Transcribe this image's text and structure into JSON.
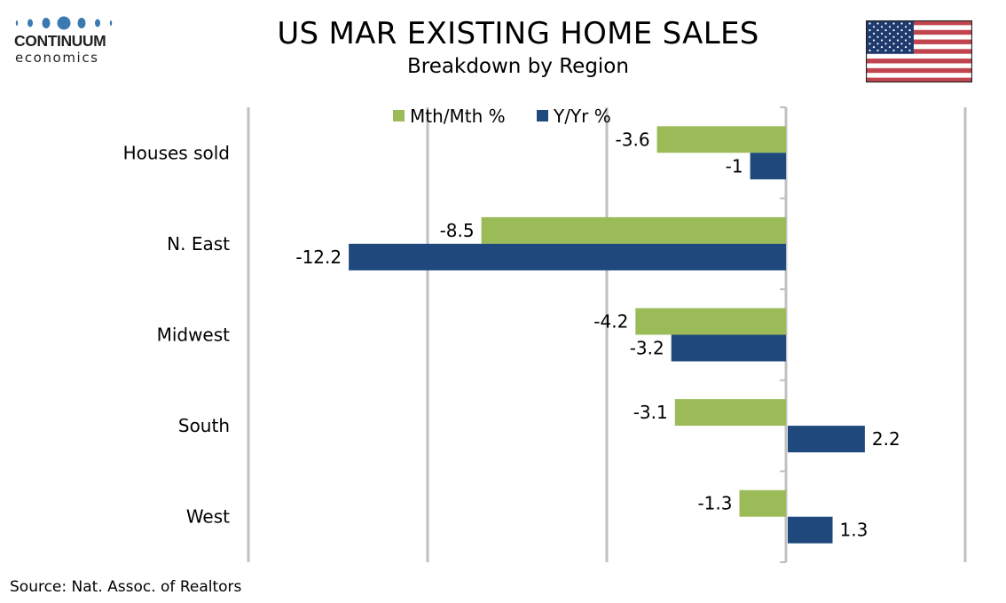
{
  "header": {
    "logo_word": "CONTINUUM",
    "logo_sub": "economics",
    "logo_color": "#3a7ab0",
    "flag": "us-flag-icon"
  },
  "source": "Source: Nat. Assoc. of Realtors",
  "chart_data": {
    "type": "bar",
    "orientation": "horizontal",
    "title": "US MAR EXISTING HOME SALES",
    "subtitle": "Breakdown by Region",
    "categories": [
      "Houses sold",
      "N. East",
      "Midwest",
      "South",
      "West"
    ],
    "series": [
      {
        "name": "Mth/Mth %",
        "color": "#9bbb59",
        "values": [
          -3.6,
          -8.5,
          -4.2,
          -3.1,
          -1.3
        ]
      },
      {
        "name": "Y/Yr %",
        "color": "#1f497d",
        "values": [
          -1,
          -12.2,
          -3.2,
          2.2,
          1.3
        ]
      }
    ],
    "value_labels": [
      [
        "-3.6",
        "-8.5",
        "-4.2",
        "-3.1",
        "-1.3"
      ],
      [
        "-1",
        "-12.2",
        "-3.2",
        "2.2",
        "1.3"
      ]
    ],
    "xlim": [
      -15,
      5
    ],
    "gridlines_at": [
      -15,
      -10,
      -5,
      0,
      5
    ],
    "tick_labels_shown": false,
    "grid": true,
    "legend_position": "top-center",
    "xlabel": "",
    "ylabel": ""
  }
}
